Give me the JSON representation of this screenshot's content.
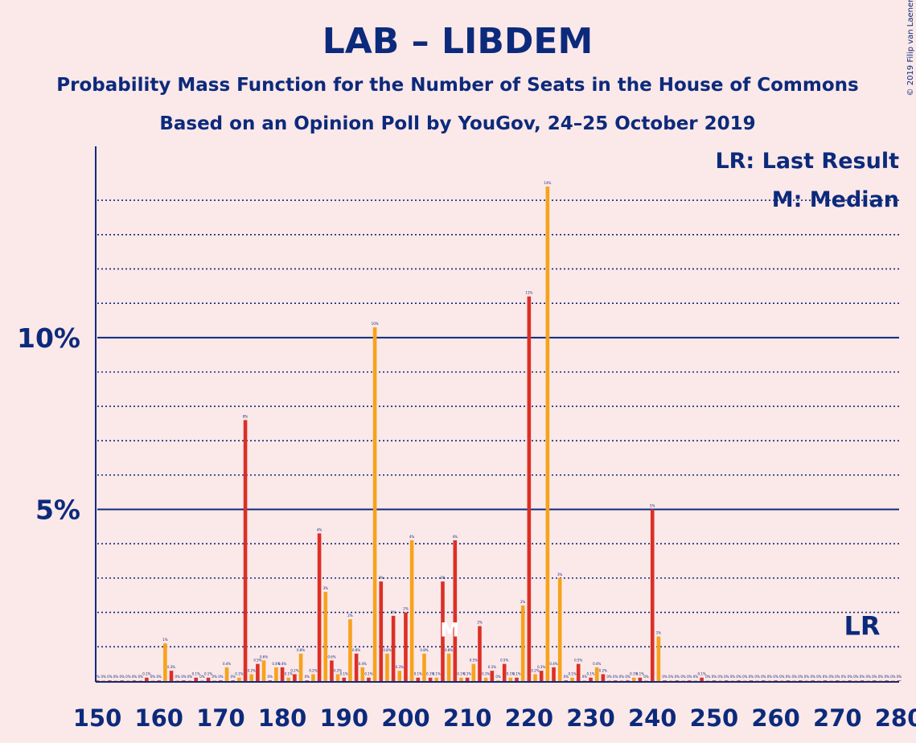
{
  "colors": {
    "background": "#fbe8e8",
    "text": "#0c2a7c",
    "lab": "#dc2f26",
    "libdem": "#f7a21c"
  },
  "copyright": "© 2019 Filip van Laenen",
  "chart_data": {
    "type": "bar",
    "title": "LAB – LIBDEM",
    "subtitle": "Probability Mass Function for the Number of Seats in the House of Commons",
    "subtitle2": "Based on an Opinion Poll by YouGov, 24–25 October 2019",
    "legend": {
      "lr": "LR: Last Result",
      "m": "M: Median",
      "placement": "top-right"
    },
    "xlim": [
      150,
      280
    ],
    "ylim": [
      0,
      15.5
    ],
    "x_ticks": [
      150,
      160,
      170,
      180,
      190,
      200,
      210,
      220,
      230,
      240,
      250,
      260,
      270,
      280
    ],
    "y_ticks": [
      {
        "value": 5,
        "label": "5%"
      },
      {
        "value": 10,
        "label": "10%"
      }
    ],
    "grid": "dotted every 1%, solid at 5% and 10%",
    "median_seat": 207,
    "median_label": "M",
    "last_result_seat": 274,
    "last_result_label": "LR",
    "series": [
      {
        "color": "#dc2f26",
        "points": [
          [
            150,
            0
          ],
          [
            152,
            0
          ],
          [
            154,
            0
          ],
          [
            156,
            0
          ],
          [
            158,
            0.1
          ],
          [
            160,
            0
          ],
          [
            162,
            0.3
          ],
          [
            164,
            0
          ],
          [
            166,
            0.1
          ],
          [
            168,
            0.1
          ],
          [
            170,
            0
          ],
          [
            172,
            0
          ],
          [
            174,
            7.6
          ],
          [
            176,
            0.5
          ],
          [
            178,
            0
          ],
          [
            180,
            0.4
          ],
          [
            182,
            0.2
          ],
          [
            184,
            0
          ],
          [
            186,
            4.3
          ],
          [
            188,
            0.6
          ],
          [
            190,
            0.1
          ],
          [
            192,
            0.8
          ],
          [
            194,
            0.1
          ],
          [
            196,
            2.9
          ],
          [
            198,
            1.9
          ],
          [
            200,
            2.0
          ],
          [
            202,
            0.1
          ],
          [
            204,
            0.1
          ],
          [
            206,
            2.9
          ],
          [
            208,
            4.1
          ],
          [
            210,
            0.1
          ],
          [
            212,
            1.6
          ],
          [
            214,
            0.3
          ],
          [
            216,
            0.5
          ],
          [
            218,
            0.1
          ],
          [
            220,
            11.2
          ],
          [
            222,
            0.3
          ],
          [
            224,
            0.4
          ],
          [
            226,
            0
          ],
          [
            228,
            0.5
          ],
          [
            230,
            0.1
          ],
          [
            232,
            0.2
          ],
          [
            234,
            0
          ],
          [
            236,
            0
          ],
          [
            238,
            0.1
          ],
          [
            240,
            5.0
          ],
          [
            242,
            0
          ],
          [
            244,
            0
          ],
          [
            246,
            0
          ],
          [
            248,
            0.1
          ],
          [
            250,
            0
          ],
          [
            252,
            0
          ],
          [
            254,
            0
          ],
          [
            256,
            0
          ],
          [
            258,
            0
          ],
          [
            260,
            0
          ],
          [
            262,
            0
          ],
          [
            264,
            0
          ],
          [
            266,
            0
          ],
          [
            268,
            0
          ],
          [
            270,
            0
          ],
          [
            272,
            0
          ],
          [
            274,
            0
          ],
          [
            276,
            0
          ],
          [
            278,
            0
          ],
          [
            280,
            0
          ]
        ]
      },
      {
        "color": "#f7a21c",
        "points": [
          [
            151,
            0
          ],
          [
            153,
            0
          ],
          [
            155,
            0
          ],
          [
            157,
            0
          ],
          [
            159,
            0
          ],
          [
            161,
            1.1
          ],
          [
            163,
            0
          ],
          [
            165,
            0
          ],
          [
            167,
            0
          ],
          [
            169,
            0
          ],
          [
            171,
            0.4
          ],
          [
            173,
            0.1
          ],
          [
            175,
            0.2
          ],
          [
            177,
            0.6
          ],
          [
            179,
            0.4
          ],
          [
            181,
            0.1
          ],
          [
            183,
            0.8
          ],
          [
            185,
            0.2
          ],
          [
            187,
            2.6
          ],
          [
            189,
            0.2
          ],
          [
            191,
            1.8
          ],
          [
            193,
            0.4
          ],
          [
            195,
            10.3
          ],
          [
            197,
            0.8
          ],
          [
            199,
            0.3
          ],
          [
            201,
            4.1
          ],
          [
            203,
            0.8
          ],
          [
            205,
            0.1
          ],
          [
            207,
            0.8
          ],
          [
            209,
            0.1
          ],
          [
            211,
            0.5
          ],
          [
            213,
            0.1
          ],
          [
            215,
            0
          ],
          [
            217,
            0.1
          ],
          [
            219,
            2.2
          ],
          [
            221,
            0.2
          ],
          [
            223,
            14.4
          ],
          [
            225,
            3.0
          ],
          [
            227,
            0.1
          ],
          [
            229,
            0
          ],
          [
            231,
            0.4
          ],
          [
            233,
            0
          ],
          [
            235,
            0
          ],
          [
            237,
            0.1
          ],
          [
            239,
            0
          ],
          [
            241,
            1.3
          ],
          [
            243,
            0
          ],
          [
            245,
            0
          ],
          [
            247,
            0
          ],
          [
            249,
            0
          ],
          [
            251,
            0
          ],
          [
            253,
            0
          ],
          [
            255,
            0
          ],
          [
            257,
            0
          ],
          [
            259,
            0
          ],
          [
            261,
            0
          ],
          [
            263,
            0
          ],
          [
            265,
            0
          ],
          [
            267,
            0
          ],
          [
            269,
            0
          ],
          [
            271,
            0
          ],
          [
            273,
            0
          ],
          [
            275,
            0
          ],
          [
            277,
            0
          ],
          [
            279,
            0
          ]
        ]
      }
    ]
  }
}
